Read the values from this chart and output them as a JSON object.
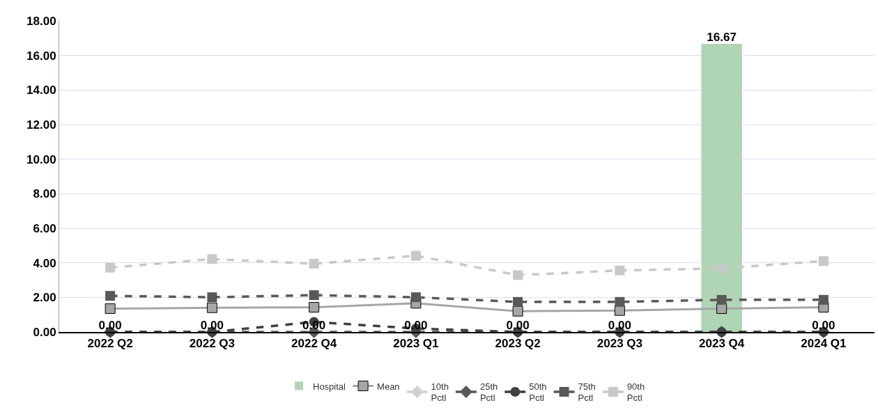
{
  "chart_data": {
    "type": "line",
    "categories": [
      "2022 Q2",
      "2022 Q3",
      "2022 Q4",
      "2023 Q1",
      "2023 Q2",
      "2023 Q3",
      "2023 Q4",
      "2024 Q1"
    ],
    "ylim": [
      0,
      18
    ],
    "yticks": [
      {
        "value": 0,
        "label": "0.00"
      },
      {
        "value": 2,
        "label": "2.00"
      },
      {
        "value": 4,
        "label": "4.00"
      },
      {
        "value": 6,
        "label": "6.00"
      },
      {
        "value": 8,
        "label": "8.00"
      },
      {
        "value": 10,
        "label": "10.00"
      },
      {
        "value": 12,
        "label": "12.00"
      },
      {
        "value": 14,
        "label": "14.00"
      },
      {
        "value": 16,
        "label": "16.00"
      },
      {
        "value": 18,
        "label": "18.00"
      }
    ],
    "grid": "y",
    "legend": "bottom",
    "series": [
      {
        "name": "Hospital",
        "type": "bar",
        "color": "#b0d5b4",
        "values": [
          0,
          0,
          0,
          0,
          0,
          0,
          16.67,
          0
        ],
        "value_labels": [
          "0.00",
          "0.00",
          "0.00",
          "0.00",
          "0.00",
          "0.00",
          "16.67",
          "0.00"
        ]
      },
      {
        "name": "Mean",
        "color": "#a6a6a6",
        "marker": "square",
        "line_style": "solid",
        "values": [
          1.35,
          1.4,
          1.43,
          1.66,
          1.2,
          1.24,
          1.35,
          1.43
        ]
      },
      {
        "name": "10th Pctl",
        "color": "#d0d0d0",
        "marker": "diamond",
        "line_style": "dashed",
        "values": [
          null,
          null,
          null,
          null,
          null,
          null,
          null,
          null
        ]
      },
      {
        "name": "25th Pctl",
        "color": "#595959",
        "marker": "diamond",
        "line_style": "dashed",
        "values": [
          0,
          0,
          0,
          0,
          0,
          0,
          0,
          0
        ]
      },
      {
        "name": "50th Pctl",
        "color": "#404040",
        "marker": "circle",
        "line_style": "dashed",
        "values": [
          0,
          0,
          0.58,
          0.2,
          0,
          0,
          0,
          0
        ]
      },
      {
        "name": "75th Pctl",
        "color": "#595959",
        "marker": "square",
        "line_style": "dashed",
        "values": [
          2.09,
          2.01,
          2.13,
          2.01,
          1.74,
          1.74,
          1.86,
          1.86
        ]
      },
      {
        "name": "90th Pctl",
        "color": "#c8c8c8",
        "marker": "square",
        "line_style": "dashed",
        "values": [
          3.72,
          4.22,
          3.95,
          4.41,
          3.29,
          3.56,
          3.68,
          4.1
        ]
      }
    ]
  }
}
